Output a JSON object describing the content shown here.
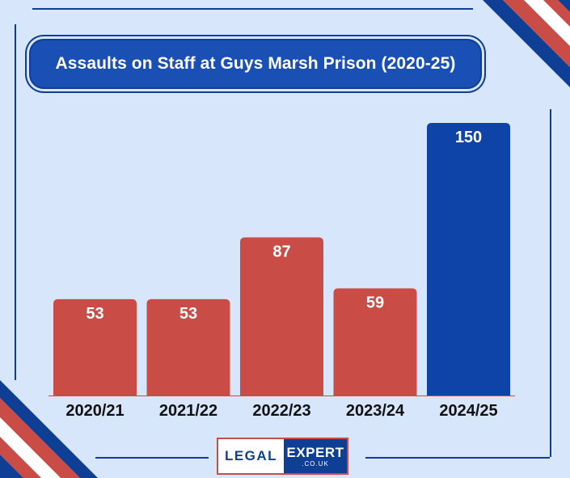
{
  "chart_data": {
    "type": "bar",
    "title": "Assaults on Staff at Guys Marsh Prison (2020-25)",
    "categories": [
      "2020/21",
      "2021/22",
      "2022/23",
      "2023/24",
      "2024/25"
    ],
    "values": [
      53,
      53,
      87,
      59,
      150
    ],
    "bar_colors": [
      "#c94c46",
      "#c94c46",
      "#c94c46",
      "#c94c46",
      "#0e44a8"
    ],
    "ylim": [
      0,
      150
    ],
    "grid": false,
    "legend": "none"
  },
  "logo": {
    "left_text": "LEGAL",
    "right_text": "EXPERT",
    "sub_text": ".CO.UK"
  },
  "colors": {
    "background": "#d7e6fb",
    "navy": "#0e3f95",
    "red": "#c94c46",
    "highlight_blue": "#0e44a8"
  }
}
